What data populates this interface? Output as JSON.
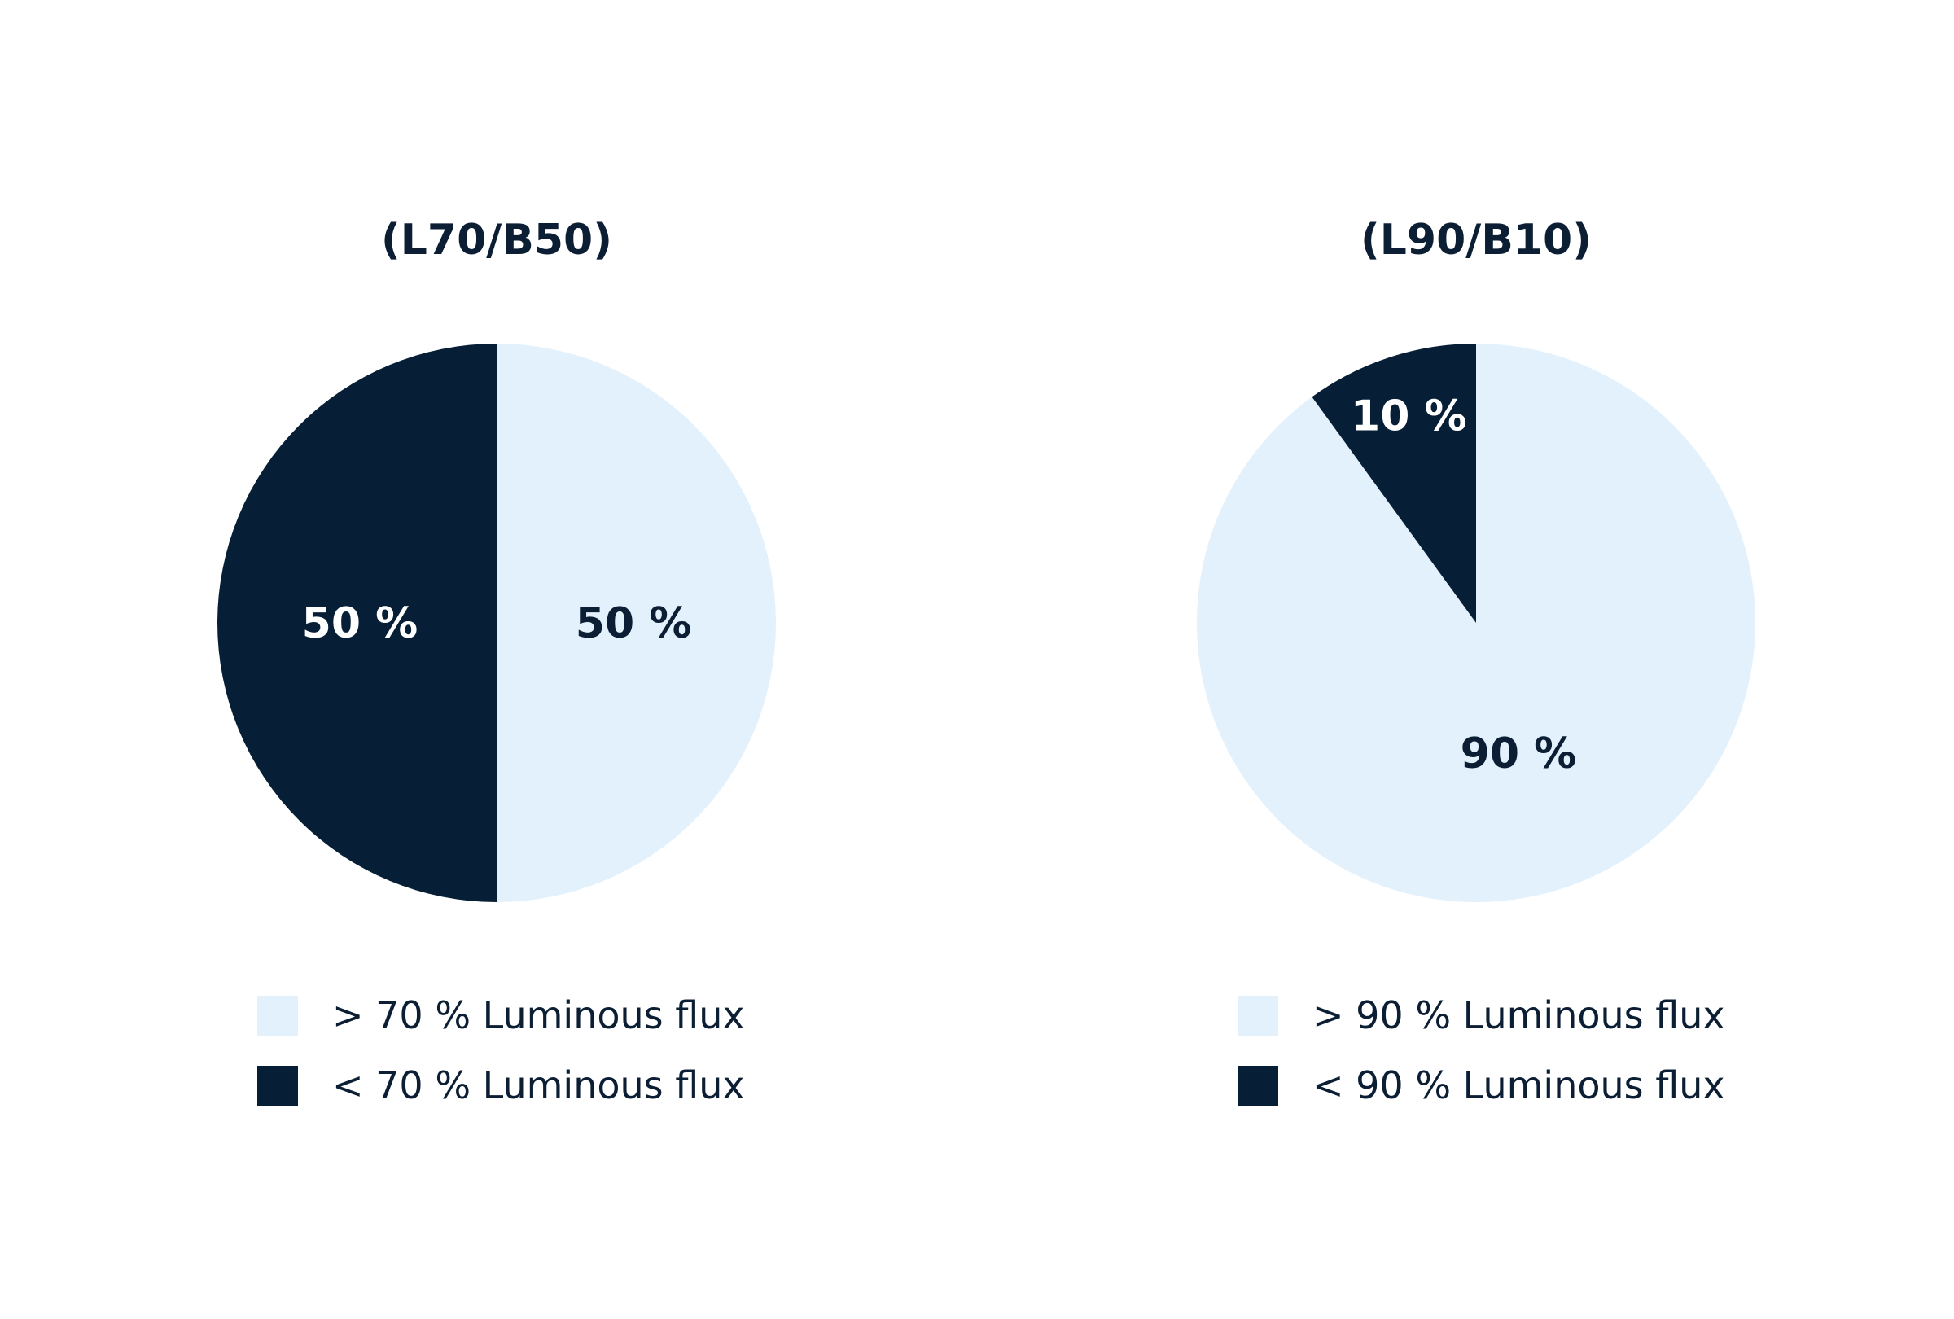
{
  "colors": {
    "light": "#e3f1fc",
    "dark": "#071f36",
    "text_dark": "#0b1e33",
    "text_light": "#ffffff"
  },
  "chart_data": [
    {
      "type": "pie",
      "title": "(L70/B50)",
      "slices": [
        {
          "label": "> 70 % Luminous flux",
          "value": 50,
          "value_label": "50 %",
          "color_key": "light"
        },
        {
          "label": "< 70 % Luminous flux",
          "value": 50,
          "value_label": "50 %",
          "color_key": "dark"
        }
      ],
      "legend_position": "bottom"
    },
    {
      "type": "pie",
      "title": "(L90/B10)",
      "slices": [
        {
          "label": "> 90 % Luminous flux",
          "value": 90,
          "value_label": "90 %",
          "color_key": "light"
        },
        {
          "label": "< 90 % Luminous flux",
          "value": 10,
          "value_label": "10 %",
          "color_key": "dark"
        }
      ],
      "legend_position": "bottom"
    }
  ]
}
